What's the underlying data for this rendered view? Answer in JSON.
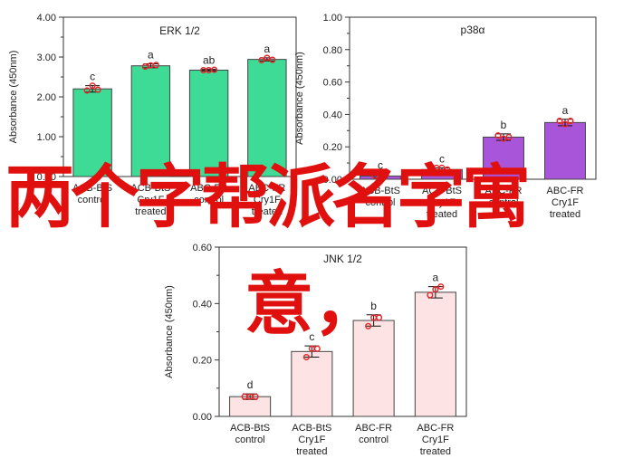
{
  "chart_data": [
    {
      "type": "bar",
      "title": "ERK 1/2",
      "ylabel": "Absorbance (450nm)",
      "ylim": [
        0,
        4
      ],
      "yticks": [
        "0.00",
        "1.00",
        "2.00",
        "3.00",
        "4.00"
      ],
      "yticks_values": [
        0,
        1,
        2,
        3,
        4
      ],
      "categories": [
        "ACB-BtS\ncontrol",
        "ACB-BtS\nCry1F\ntreated",
        "ABC-FR\ncontrol",
        "ABC-FR\nCry1F\ntreated"
      ],
      "values": [
        2.2,
        2.78,
        2.67,
        2.94
      ],
      "errors": [
        0.08,
        0.05,
        0.02,
        0.04
      ],
      "points": [
        [
          2.16,
          2.28,
          2.18
        ],
        [
          2.76,
          2.79,
          2.8
        ],
        [
          2.67,
          2.67,
          2.68
        ],
        [
          2.92,
          2.98,
          2.93
        ]
      ],
      "letters": [
        "c",
        "a",
        "ab",
        "a"
      ],
      "bar_colors": [
        "#3ddb96",
        "#3ddb96",
        "#3ddb96",
        "#3ddb96"
      ]
    },
    {
      "type": "bar",
      "title": "p38α",
      "ylabel": "Absorbance (450nm)",
      "ylim": [
        0,
        1
      ],
      "yticks": [
        "0.00",
        "0.20",
        "0.40",
        "0.60",
        "0.80",
        "1.00"
      ],
      "yticks_values": [
        0,
        0.2,
        0.4,
        0.6,
        0.8,
        1.0
      ],
      "categories": [
        "ACB-BtS\ncontrol",
        "ACB-BtS\nCry1F\ntreated",
        "ABC-FR\ncontrol",
        "ABC-FR\nCry1F\ntreated"
      ],
      "values": [
        0.02,
        0.06,
        0.26,
        0.35
      ],
      "errors": [
        0.01,
        0.01,
        0.02,
        0.02
      ],
      "points": [
        [
          0.02,
          0.02,
          0.03
        ],
        [
          0.07,
          0.07,
          0.06
        ],
        [
          0.27,
          0.25,
          0.26
        ],
        [
          0.36,
          0.34,
          0.36
        ]
      ],
      "letters": [
        "c",
        "c",
        "b",
        "a"
      ],
      "bar_colors": [
        "#a855d9",
        "#a855d9",
        "#a855d9",
        "#a855d9"
      ]
    },
    {
      "type": "bar",
      "title": "JNK 1/2",
      "ylabel": "Absorbance (450nm)",
      "ylim": [
        0,
        0.6
      ],
      "yticks": [
        "0.00",
        "0.20",
        "0.40",
        "0.60"
      ],
      "yticks_values": [
        0,
        0.2,
        0.4,
        0.6
      ],
      "minor_yticks_values": [
        0.1,
        0.3,
        0.5
      ],
      "categories": [
        "ACB-BtS\ncontrol",
        "ACB-BtS\nCry1F\ntreated",
        "ABC-FR\ncontrol",
        "ABC-FR\nCry1F\ntreated"
      ],
      "values": [
        0.07,
        0.23,
        0.34,
        0.44
      ],
      "errors": [
        0.01,
        0.02,
        0.02,
        0.02
      ],
      "points": [
        [
          0.07,
          0.07,
          0.07
        ],
        [
          0.21,
          0.24,
          0.24
        ],
        [
          0.32,
          0.35,
          0.35
        ],
        [
          0.43,
          0.45,
          0.46
        ]
      ],
      "letters": [
        "d",
        "c",
        "b",
        "a"
      ],
      "bar_colors": [
        "#fde3e3",
        "#fde3e3",
        "#fde3e3",
        "#fde3e3"
      ]
    }
  ],
  "overlay_text": {
    "line1": "两个字帮派名字寓",
    "line2": "意，"
  },
  "colors": {
    "axis": "#333333",
    "point": "#e8262a",
    "overlay_text": "#e0100f",
    "bar_border": "#444444"
  }
}
